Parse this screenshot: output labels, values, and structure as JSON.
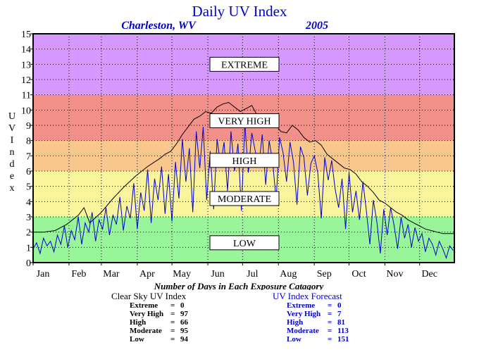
{
  "title": "Daily UV Index",
  "location": "Charleston, WV",
  "year": "2005",
  "y_axis_label": "UV Index",
  "x_caption": "Number of Days in Each Exposure Catagory",
  "categories": [
    {
      "label": "EXTREME",
      "color": "#d599ff"
    },
    {
      "label": "VERY HIGH",
      "color": "#f2908a"
    },
    {
      "label": "HIGH",
      "color": "#f8c78e"
    },
    {
      "label": "MODERATE",
      "color": "#faf59c"
    },
    {
      "label": "LOW",
      "color": "#99f599"
    }
  ],
  "colors": {
    "clear_sky": "#000000",
    "forecast": "#0000cc",
    "title": "#0000cc"
  },
  "clear_sky": {
    "title": "Clear Sky UV Index",
    "rows": [
      {
        "label": "Extreme",
        "value": "0"
      },
      {
        "label": "Very High",
        "value": "97"
      },
      {
        "label": "High",
        "value": "66"
      },
      {
        "label": "Moderate",
        "value": "95"
      },
      {
        "label": "Low",
        "value": "94"
      }
    ]
  },
  "forecast": {
    "title": "UV Index Forecast",
    "rows": [
      {
        "label": "Extreme",
        "value": "0"
      },
      {
        "label": "Very High",
        "value": "7"
      },
      {
        "label": "High",
        "value": "81"
      },
      {
        "label": "Moderate",
        "value": "113"
      },
      {
        "label": "Low",
        "value": "151"
      }
    ]
  },
  "chart_data": {
    "type": "line",
    "title": "Daily UV Index",
    "xlabel": "",
    "ylabel": "UV Index",
    "ylim": [
      0,
      15
    ],
    "xlim": [
      1,
      365
    ],
    "yticks": [
      0,
      1,
      2,
      3,
      4,
      5,
      6,
      7,
      8,
      9,
      10,
      11,
      12,
      13,
      14,
      15
    ],
    "month_labels": [
      "Jan",
      "Feb",
      "Mar",
      "Apr",
      "May",
      "Jun",
      "Jul",
      "Aug",
      "Sep",
      "Oct",
      "Nov",
      "Dec"
    ],
    "month_days": [
      1,
      32,
      60,
      91,
      121,
      152,
      182,
      213,
      244,
      274,
      305,
      335
    ],
    "bands": [
      {
        "label": "LOW",
        "from": 0,
        "to": 3
      },
      {
        "label": "MODERATE",
        "from": 3,
        "to": 6
      },
      {
        "label": "HIGH",
        "from": 6,
        "to": 8
      },
      {
        "label": "VERY HIGH",
        "from": 8,
        "to": 11
      },
      {
        "label": "EXTREME",
        "from": 11,
        "to": 15
      }
    ],
    "band_label_levels": [
      13.0,
      9.3,
      6.7,
      4.2,
      1.3
    ],
    "grid": true,
    "series": [
      {
        "kind": "clear_sky",
        "x": [
          1,
          10,
          20,
          30,
          40,
          45,
          50,
          60,
          70,
          80,
          90,
          100,
          110,
          115,
          120,
          125,
          130,
          135,
          140,
          145,
          150,
          155,
          160,
          165,
          170,
          175,
          180,
          185,
          190,
          195,
          200,
          205,
          210,
          215,
          220,
          225,
          230,
          235,
          240,
          245,
          250,
          255,
          260,
          265,
          270,
          275,
          280,
          285,
          290,
          295,
          300,
          305,
          310,
          315,
          320,
          325,
          330,
          335,
          340,
          345,
          350,
          355,
          360,
          365
        ],
        "y": [
          2.0,
          2.0,
          2.1,
          2.5,
          3.1,
          3.6,
          2.6,
          3.3,
          4.2,
          5.0,
          5.7,
          6.3,
          6.8,
          7.1,
          7.3,
          7.8,
          8.4,
          8.9,
          9.4,
          9.6,
          9.9,
          9.8,
          10.2,
          10.4,
          10.5,
          10.2,
          9.9,
          10.1,
          10.3,
          9.6,
          9.2,
          9.7,
          9.1,
          8.6,
          8.5,
          9.0,
          8.7,
          8.2,
          7.9,
          8.0,
          7.7,
          7.1,
          6.8,
          6.5,
          6.2,
          6.1,
          5.8,
          5.3,
          5.0,
          4.6,
          4.1,
          3.9,
          3.6,
          3.3,
          3.1,
          2.8,
          2.6,
          2.4,
          2.2,
          2.1,
          2.0,
          1.9,
          1.9,
          1.9
        ]
      },
      {
        "kind": "forecast",
        "x": [
          1,
          4,
          7,
          10,
          13,
          16,
          19,
          22,
          25,
          28,
          31,
          34,
          37,
          40,
          43,
          46,
          49,
          52,
          55,
          58,
          61,
          64,
          67,
          70,
          73,
          76,
          79,
          82,
          85,
          88,
          91,
          94,
          97,
          100,
          103,
          106,
          109,
          112,
          115,
          118,
          121,
          124,
          127,
          130,
          133,
          136,
          139,
          142,
          145,
          148,
          151,
          154,
          157,
          160,
          163,
          166,
          169,
          172,
          175,
          178,
          181,
          184,
          187,
          190,
          193,
          196,
          199,
          202,
          205,
          208,
          211,
          214,
          217,
          220,
          223,
          226,
          229,
          232,
          235,
          238,
          241,
          244,
          247,
          250,
          253,
          256,
          259,
          262,
          265,
          268,
          271,
          274,
          277,
          280,
          283,
          286,
          289,
          292,
          295,
          298,
          301,
          304,
          307,
          310,
          313,
          316,
          319,
          322,
          325,
          328,
          331,
          334,
          337,
          340,
          343,
          346,
          349,
          352,
          355,
          358,
          361,
          364
        ],
        "y": [
          0.9,
          1.3,
          0.6,
          1.6,
          1.1,
          1.4,
          0.7,
          1.8,
          1.2,
          2.4,
          1.0,
          2.1,
          1.5,
          3.0,
          1.2,
          2.6,
          2.0,
          3.3,
          1.4,
          2.8,
          2.2,
          3.6,
          1.8,
          3.1,
          2.5,
          4.3,
          2.1,
          3.7,
          2.9,
          5.2,
          2.2,
          4.6,
          3.4,
          6.1,
          2.6,
          5.5,
          4.1,
          6.3,
          3.2,
          5.8,
          2.7,
          6.6,
          4.2,
          8.1,
          5.3,
          7.5,
          3.3,
          8.6,
          6.2,
          8.9,
          4.1,
          7.3,
          3.5,
          8.1,
          6.4,
          7.9,
          4.7,
          8.6,
          6.0,
          7.8,
          3.4,
          9.1,
          5.9,
          8.5,
          7.3,
          6.3,
          8.4,
          5.1,
          8.0,
          6.6,
          4.1,
          8.2,
          7.2,
          5.3,
          7.9,
          6.6,
          3.8,
          7.6,
          6.9,
          4.4,
          6.5,
          7.0,
          5.9,
          2.9,
          6.9,
          5.4,
          6.7,
          4.8,
          3.6,
          5.5,
          2.2,
          5.9,
          3.3,
          4.7,
          2.8,
          5.3,
          3.4,
          1.2,
          4.1,
          2.7,
          0.6,
          3.5,
          1.8,
          3.6,
          2.4,
          0.9,
          3.0,
          1.6,
          2.5,
          1.0,
          2.3,
          1.4,
          1.9,
          0.7,
          1.6,
          1.2,
          0.5,
          1.4,
          0.9,
          0.3,
          1.1,
          0.8
        ]
      }
    ]
  }
}
